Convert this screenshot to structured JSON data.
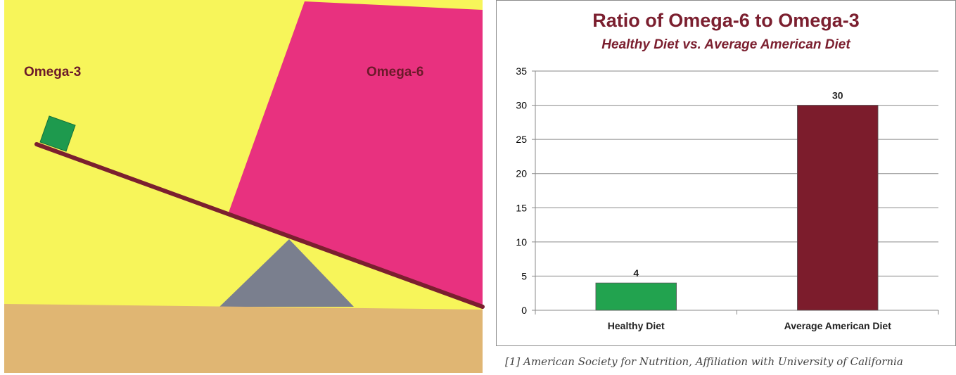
{
  "illustration": {
    "left_label": "Omega-3",
    "right_label": "Omega-6",
    "colors": {
      "left_background": "#f7f55a",
      "right_block": "#e8317f",
      "ground": "#e0b673",
      "fulcrum": "#7a7f8e",
      "beam": "#7b1f2f",
      "small_block": "#1e9a4e",
      "label_text": "#6b1a2a"
    }
  },
  "chart_data": {
    "type": "bar",
    "title": "Ratio of Omega-6 to Omega-3",
    "subtitle": "Healthy Diet vs. Average American Diet",
    "categories": [
      "Healthy Diet",
      "Average American Diet"
    ],
    "values": [
      4,
      30
    ],
    "data_labels": [
      "4",
      "30"
    ],
    "bar_colors": [
      "#22a34f",
      "#7c1c2c"
    ],
    "ylim": [
      0,
      35
    ],
    "yticks": [
      0,
      5,
      10,
      15,
      20,
      25,
      30,
      35
    ],
    "ytick_labels": [
      "0",
      "5",
      "10",
      "15",
      "20",
      "25",
      "30",
      "35"
    ],
    "grid": true,
    "legend": "none",
    "title_color": "#7b1f2f"
  },
  "footnote": "[1] American Society for Nutrition, Affiliation with University of California"
}
